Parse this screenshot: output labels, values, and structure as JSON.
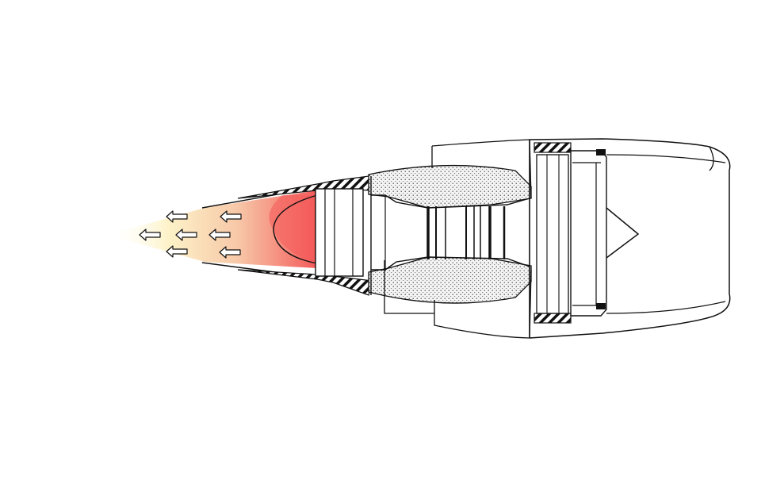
{
  "diagram": {
    "subject": "turbofan-engine-cross-section",
    "labels": [],
    "colors": {
      "outline": "#111111",
      "exhaust_hot": "#f45a5a",
      "exhaust_warm": "#f7b090",
      "exhaust_cool": "#fdf2c8",
      "dots": "#222222",
      "fill_white": "#ffffff"
    },
    "exhaust_arrow_count": 8,
    "icons": [
      "exhaust-arrow-icon",
      "spinner-cone-icon"
    ]
  }
}
